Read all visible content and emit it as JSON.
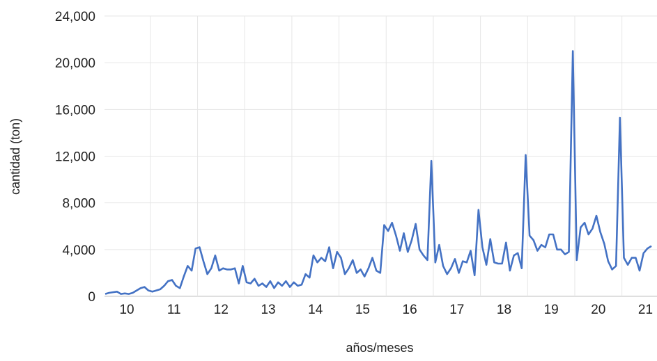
{
  "chart_data": {
    "type": "line",
    "title": "",
    "xlabel": "años/meses",
    "ylabel": "cantidad (ton)",
    "ylim": [
      0,
      24000
    ],
    "yticks": [
      0,
      4000,
      8000,
      12000,
      16000,
      20000,
      24000
    ],
    "ytick_labels": [
      "0",
      "4,000",
      "8,000",
      "12,000",
      "16,000",
      "20,000",
      "24,000"
    ],
    "xtick_labels": [
      "10",
      "11",
      "12",
      "13",
      "14",
      "15",
      "16",
      "17",
      "18",
      "19",
      "20",
      "21"
    ],
    "grid": "vertical at year boundaries and horizontal at y ticks",
    "legend": "none",
    "series_color": "#4472c4",
    "grid_color": "#e6e6e6",
    "series": [
      {
        "values": [
          200,
          300,
          350,
          400,
          200,
          250,
          200,
          300,
          500,
          700,
          800,
          500,
          400,
          500,
          600,
          900,
          1300,
          1400,
          900,
          700,
          1700,
          2600,
          2200,
          4100,
          4200,
          3000,
          1900,
          2400,
          3500,
          2200,
          2400,
          2300,
          2300,
          2400,
          1100,
          2600,
          1200,
          1100,
          1500,
          900,
          1100,
          800,
          1300,
          700,
          1200,
          900,
          1300,
          800,
          1200,
          900,
          1000,
          1900,
          1600,
          3500,
          2900,
          3300,
          3000,
          4200,
          2400,
          3800,
          3300,
          1900,
          2400,
          3100,
          2000,
          2300,
          1700,
          2400,
          3300,
          2200,
          2000,
          6100,
          5600,
          6300,
          5200,
          3900,
          5400,
          3800,
          4800,
          6200,
          4000,
          3500,
          3100,
          11600,
          2900,
          4400,
          2600,
          1900,
          2400,
          3200,
          2000,
          3000,
          2900,
          3900,
          1800,
          7400,
          4200,
          2700,
          4900,
          2900,
          2800,
          2800,
          4600,
          2200,
          3500,
          3700,
          2400,
          12100,
          5200,
          4800,
          3900,
          4400,
          4200,
          5300,
          5300,
          4000,
          4000,
          3600,
          3800,
          21000,
          3100,
          5900,
          6300,
          5300,
          5800,
          6900,
          5500,
          4500,
          3000,
          2300,
          2600,
          15300,
          3300,
          2700,
          3300,
          3300,
          2200,
          3700,
          4100,
          4300
        ]
      }
    ]
  }
}
